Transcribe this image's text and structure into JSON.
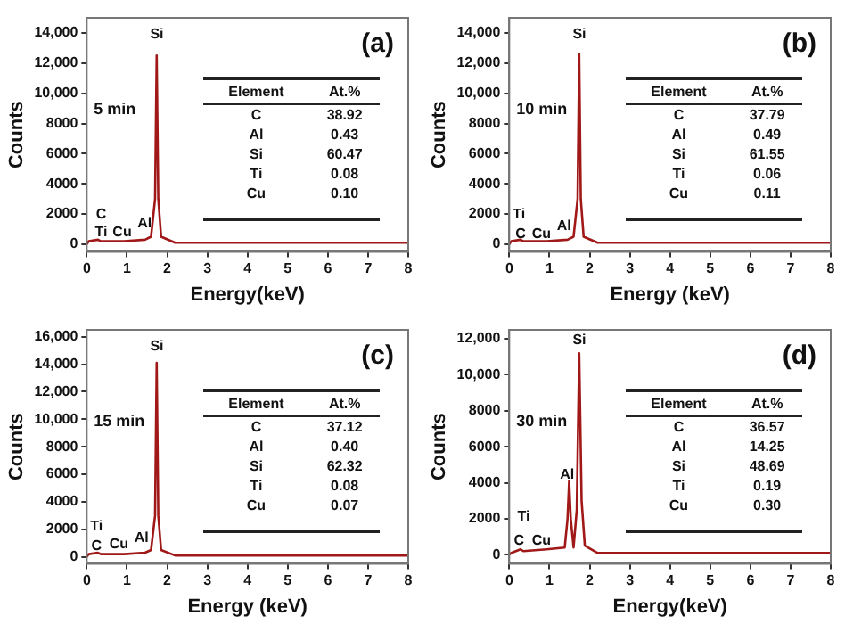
{
  "chart_data": [
    {
      "type": "line",
      "xlabel": "Energy(keV)",
      "ylabel": "Counts",
      "xlim": [
        0,
        8
      ],
      "xticks": [
        0,
        1,
        2,
        3,
        4,
        5,
        6,
        7,
        8
      ],
      "ylim": [
        -500,
        15000
      ],
      "yticks": [
        0,
        2000,
        4000,
        6000,
        8000,
        {
          "value": 10000,
          "label": "10,000"
        },
        {
          "value": 12000,
          "label": "12,000"
        },
        {
          "value": 14000,
          "label": "14,000"
        }
      ],
      "grid": false,
      "legend": false,
      "marker": "none",
      "x": [
        0,
        0.05,
        0.28,
        0.35,
        0.93,
        1.45,
        1.6,
        1.7,
        1.74,
        1.78,
        1.85,
        2.2,
        8
      ],
      "series": [
        {
          "color": "#a01818",
          "values": [
            0,
            200,
            300,
            200,
            200,
            300,
            500,
            3000,
            12500,
            3000,
            500,
            100,
            100
          ]
        }
      ],
      "annotations": [
        "(a)",
        "5 min",
        "Element",
        "At.%",
        "C",
        "38.92",
        "Al",
        "0.43",
        "Si",
        "60.47",
        "Ti",
        "0.08",
        "Cu",
        "0.10",
        "C",
        "Ti",
        "Cu",
        "Al",
        "Si"
      ]
    },
    {
      "type": "line",
      "xlabel": "Energy (keV)",
      "ylabel": "Counts",
      "xlim": [
        0,
        8
      ],
      "xticks": [
        0,
        1,
        2,
        3,
        4,
        5,
        6,
        7,
        8
      ],
      "ylim": [
        -500,
        15000
      ],
      "yticks": [
        0,
        2000,
        4000,
        6000,
        8000,
        {
          "value": 10000,
          "label": "10,000"
        },
        {
          "value": 12000,
          "label": "12,000"
        },
        {
          "value": 14000,
          "label": "14,000"
        }
      ],
      "grid": false,
      "legend": false,
      "marker": "none",
      "x": [
        0,
        0.05,
        0.28,
        0.35,
        0.93,
        1.45,
        1.6,
        1.7,
        1.74,
        1.78,
        1.85,
        2.2,
        8
      ],
      "series": [
        {
          "color": "#a01818",
          "values": [
            0,
            200,
            300,
            200,
            200,
            300,
            500,
            3000,
            12600,
            3000,
            500,
            100,
            100
          ]
        }
      ],
      "annotations": [
        "(b)",
        "10 min",
        "Element",
        "At.%",
        "C",
        "37.79",
        "Al",
        "0.49",
        "Si",
        "61.55",
        "Ti",
        "0.06",
        "Cu",
        "0.11",
        "Ti",
        "C",
        "Cu",
        "Al",
        "Si"
      ]
    },
    {
      "type": "line",
      "xlabel": "Energy (keV)",
      "ylabel": "Counts",
      "xlim": [
        0,
        8
      ],
      "xticks": [
        0,
        1,
        2,
        3,
        4,
        5,
        6,
        7,
        8
      ],
      "ylim": [
        -500,
        16500
      ],
      "yticks": [
        0,
        2000,
        4000,
        6000,
        8000,
        {
          "value": 10000,
          "label": "10,000"
        },
        {
          "value": 12000,
          "label": "12,000"
        },
        {
          "value": 14000,
          "label": "14,000"
        },
        {
          "value": 16000,
          "label": "16,000"
        }
      ],
      "grid": false,
      "legend": false,
      "marker": "none",
      "x": [
        0,
        0.05,
        0.28,
        0.35,
        0.93,
        1.45,
        1.6,
        1.7,
        1.74,
        1.78,
        1.85,
        2.2,
        8
      ],
      "series": [
        {
          "color": "#a01818",
          "values": [
            0,
            200,
            300,
            200,
            200,
            300,
            500,
            3000,
            14100,
            3000,
            500,
            100,
            100
          ]
        }
      ],
      "annotations": [
        "(c)",
        "15 min",
        "Element",
        "At.%",
        "C",
        "37.12",
        "Al",
        "0.40",
        "Si",
        "62.32",
        "Ti",
        "0.08",
        "Cu",
        "0.07",
        "Ti",
        "C",
        "Cu",
        "Al",
        "Si"
      ]
    },
    {
      "type": "line",
      "xlabel": "Energy(keV)",
      "ylabel": "Counts",
      "xlim": [
        0,
        8
      ],
      "xticks": [
        0,
        1,
        2,
        3,
        4,
        5,
        6,
        7,
        8
      ],
      "ylim": [
        -500,
        12500
      ],
      "yticks": [
        0,
        2000,
        4000,
        6000,
        8000,
        {
          "value": 10000,
          "label": "10,000"
        },
        {
          "value": 12000,
          "label": "12,000"
        }
      ],
      "grid": false,
      "legend": false,
      "marker": "none",
      "x": [
        0,
        0.05,
        0.28,
        0.35,
        0.93,
        1.38,
        1.45,
        1.49,
        1.53,
        1.6,
        1.68,
        1.74,
        1.8,
        1.88,
        2.2,
        8
      ],
      "series": [
        {
          "color": "#a01818",
          "values": [
            0,
            100,
            300,
            200,
            300,
            400,
            2000,
            4100,
            2000,
            400,
            2500,
            11200,
            3000,
            500,
            100,
            100
          ]
        }
      ],
      "annotations": [
        "(d)",
        "30 min",
        "Element",
        "At.%",
        "C",
        "36.57",
        "Al",
        "14.25",
        "Si",
        "48.69",
        "Ti",
        "0.19",
        "Cu",
        "0.30",
        "Ti",
        "C",
        "Cu",
        "Al",
        "Si"
      ]
    }
  ]
}
